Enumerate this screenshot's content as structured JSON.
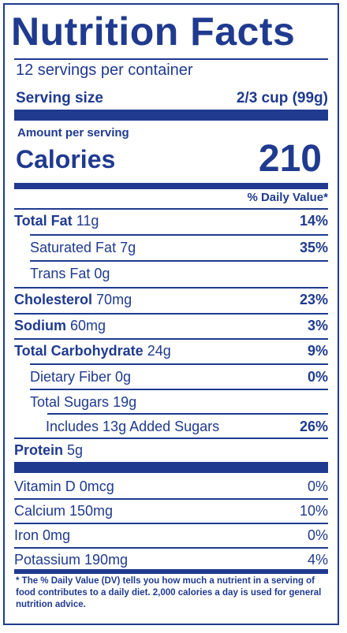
{
  "title": "Nutrition Facts",
  "servings_per_container": "12 servings per container",
  "serving_size": {
    "label": "Serving size",
    "value": "2/3 cup (99g)"
  },
  "amount_per_serving": "Amount per serving",
  "calories": {
    "label": "Calories",
    "value": "210"
  },
  "daily_value_header": "% Daily Value*",
  "nutrients": [
    {
      "name": "Total Fat",
      "amount": "11g",
      "dv": "14%"
    },
    {
      "name": "Saturated Fat",
      "amount": "7g",
      "dv": "35%"
    },
    {
      "name": "Trans Fat",
      "amount": "0g",
      "dv": ""
    },
    {
      "name": "Cholesterol",
      "amount": "70mg",
      "dv": "23%"
    },
    {
      "name": "Sodium",
      "amount": "60mg",
      "dv": "3%"
    },
    {
      "name": "Total Carbohydrate",
      "amount": "24g",
      "dv": "9%"
    },
    {
      "name": "Dietary Fiber",
      "amount": "0g",
      "dv": "0%"
    },
    {
      "name": "Total Sugars",
      "amount": "19g",
      "dv": ""
    },
    {
      "name": "Includes 13g Added Sugars",
      "amount": "",
      "dv": "26%"
    },
    {
      "name": "Protein",
      "amount": "5g",
      "dv": ""
    }
  ],
  "vitamins": [
    {
      "name": "Vitamin D 0mcg",
      "dv": "0%"
    },
    {
      "name": "Calcium 150mg",
      "dv": "10%"
    },
    {
      "name": "Iron 0mg",
      "dv": "0%"
    },
    {
      "name": "Potassium 190mg",
      "dv": "4%"
    }
  ],
  "footnote": {
    "prefix": "* The % Daily Value (DV) tells you how much a nutrient in a serving of food contributes to a daily diet. 2,000 calories a day is used for general nutrition advice."
  },
  "colors": {
    "ink": "#1f3a8f",
    "background": "#ffffff"
  }
}
